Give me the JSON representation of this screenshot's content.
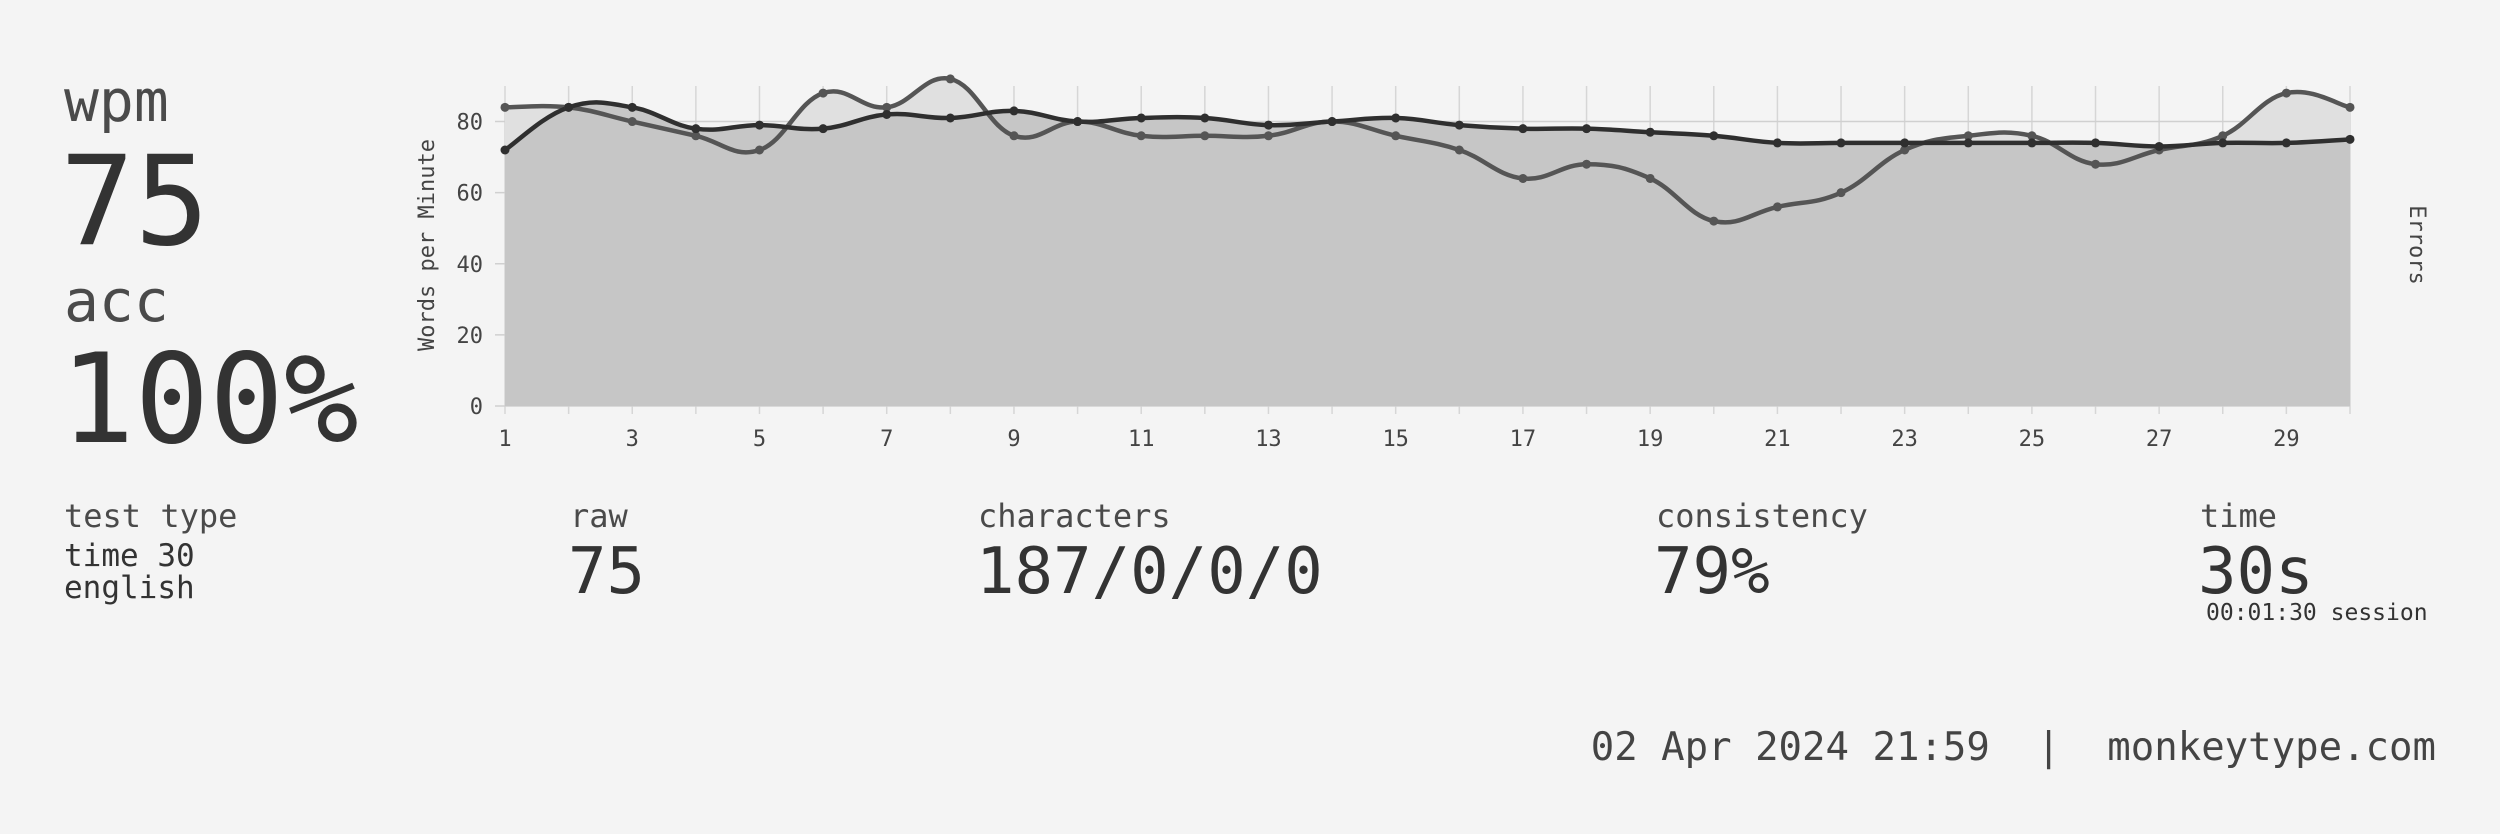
{
  "summary": {
    "wpm_label": "wpm",
    "wpm_value": "75",
    "acc_label": "acc",
    "acc_value": "100%"
  },
  "stats": {
    "test_type_label": "test type",
    "test_type_line1": "time 30",
    "test_type_line2": "english",
    "raw_label": "raw",
    "raw_value": "75",
    "characters_label": "characters",
    "characters_value": "187/0/0/0",
    "consistency_label": "consistency",
    "consistency_value": "79%",
    "time_label": "time",
    "time_value": "30s",
    "session_text": "00:01:30 session"
  },
  "footer": {
    "text": "02 Apr 2024 21:59  |  monkeytype.com"
  },
  "colors": {
    "background": "#f4f4f4",
    "text": "#333333",
    "area_raw": "#e0e0e0",
    "area_wpm": "#c6c6c6",
    "line_wpm": "#2f2f2f",
    "line_raw": "#555555"
  },
  "chart_data": {
    "type": "line",
    "ylabel": "Words per Minute",
    "y2label": "Errors",
    "ylim": [
      0,
      90
    ],
    "y_ticks": [
      0,
      20,
      40,
      60,
      80
    ],
    "x_ticks": [
      1,
      3,
      5,
      7,
      9,
      11,
      13,
      15,
      17,
      19,
      21,
      23,
      25,
      27,
      29
    ],
    "grid": true,
    "x": [
      1,
      2,
      3,
      4,
      5,
      6,
      7,
      8,
      9,
      10,
      11,
      12,
      13,
      14,
      15,
      16,
      17,
      18,
      19,
      20,
      21,
      22,
      23,
      24,
      25,
      26,
      27,
      28,
      29,
      30
    ],
    "series": [
      {
        "values": [
          72,
          84,
          84,
          78,
          79,
          78,
          82,
          81,
          83,
          80,
          81,
          81,
          79,
          80,
          81,
          79,
          78,
          78,
          77,
          76,
          74,
          74,
          74,
          74,
          74,
          74,
          73,
          74,
          74,
          75
        ]
      },
      {
        "values": [
          84,
          84,
          80,
          76,
          72,
          88,
          84,
          92,
          76,
          80,
          76,
          76,
          76,
          80,
          76,
          72,
          64,
          68,
          64,
          52,
          56,
          60,
          72,
          76,
          76,
          68,
          72,
          76,
          88,
          84
        ]
      }
    ]
  }
}
